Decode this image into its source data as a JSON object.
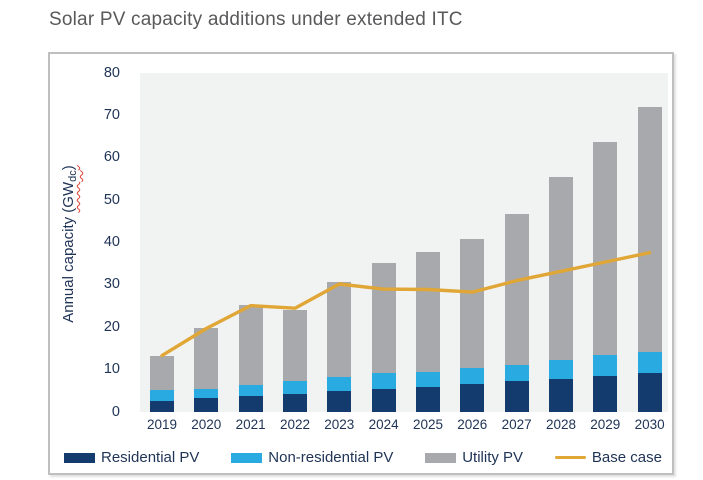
{
  "page": {
    "title": "Solar PV capacity additions under extended ITC"
  },
  "chart_data": {
    "type": "bar",
    "subtype": "stacked-bar-with-line-overlay",
    "title": "Solar PV capacity additions under extended ITC",
    "categories": [
      "2019",
      "2020",
      "2021",
      "2022",
      "2023",
      "2024",
      "2025",
      "2026",
      "2027",
      "2028",
      "2029",
      "2030"
    ],
    "series": [
      {
        "name": "Residential PV",
        "type": "bar",
        "color": "#133b6e",
        "values": [
          2.7,
          3.2,
          3.9,
          4.3,
          4.9,
          5.5,
          5.9,
          6.6,
          7.3,
          7.8,
          8.5,
          9.1
        ]
      },
      {
        "name": "Non-residential PV",
        "type": "bar",
        "color": "#29abe2",
        "values": [
          2.4,
          2.3,
          2.6,
          3.0,
          3.4,
          3.6,
          3.6,
          3.8,
          3.9,
          4.6,
          4.9,
          5.1
        ]
      },
      {
        "name": "Utility PV",
        "type": "bar",
        "color": "#a8a9ac",
        "values": [
          8.2,
          14.3,
          18.7,
          16.9,
          22.4,
          26.0,
          28.2,
          30.4,
          35.6,
          43.1,
          50.3,
          57.7
        ]
      },
      {
        "name": "Base case",
        "type": "line",
        "color": "#e0a636",
        "values": [
          13.3,
          19.7,
          25.1,
          24.5,
          30.2,
          29.0,
          28.9,
          28.3,
          31.0,
          33.2,
          35.4,
          37.6
        ]
      }
    ],
    "stacked_totals": [
      13.3,
      19.8,
      25.2,
      24.2,
      30.7,
      35.1,
      37.7,
      40.8,
      46.8,
      55.5,
      63.7,
      71.9
    ],
    "xlabel": "",
    "ylabel": "Annual capacity (GWdc)",
    "ylabel_parts": {
      "prefix": "Annual capacity ",
      "unit": "(GW",
      "subscript": "dc",
      "close": ")"
    },
    "ylim": [
      0,
      80
    ],
    "yticks": [
      0,
      10,
      20,
      30,
      40,
      50,
      60,
      70,
      80
    ],
    "grid": false,
    "legend_position": "bottom-inside-frame",
    "plot_background": "#f1f2f2",
    "axis_text_color": "#1e3355",
    "title_color": "#59595b"
  }
}
